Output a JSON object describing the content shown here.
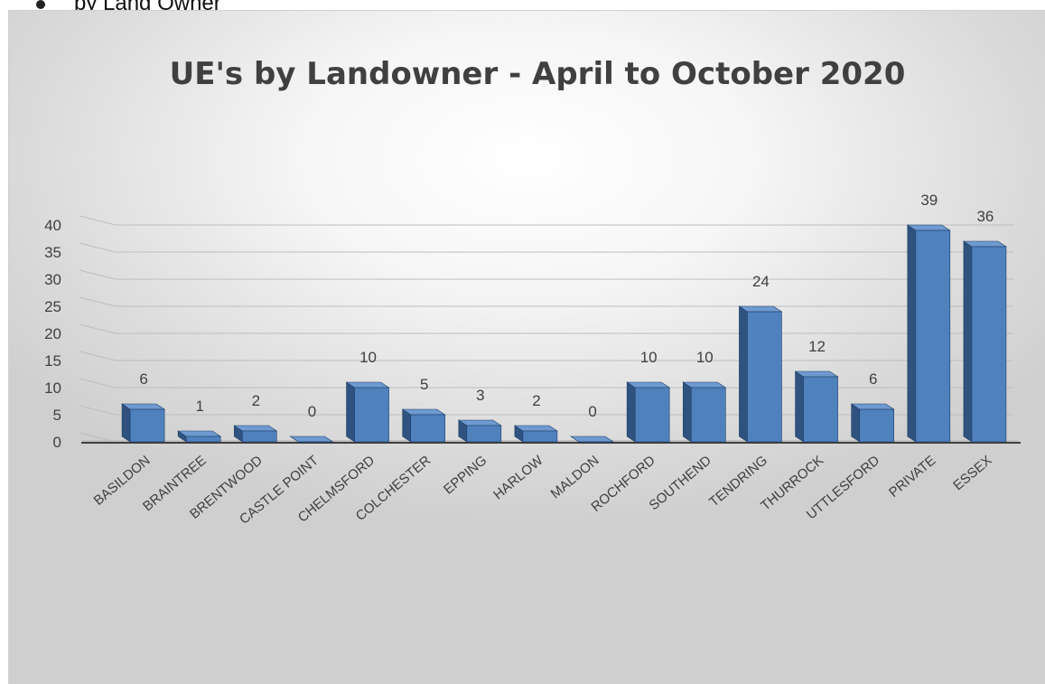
{
  "caption": "by Land Owner",
  "chart_data": {
    "type": "bar",
    "title": "UE's by Landowner - April to October 2020",
    "xlabel": "",
    "ylabel": "",
    "ylim": [
      0,
      40
    ],
    "yticks": [
      0,
      5,
      10,
      15,
      20,
      25,
      30,
      35,
      40
    ],
    "grid": true,
    "categories": [
      "BASILDON",
      "BRAINTREE",
      "BRENTWOOD",
      "CASTLE POINT",
      "CHELMSFORD",
      "COLCHESTER",
      "EPPING",
      "HARLOW",
      "MALDON",
      "ROCHFORD",
      "SOUTHEND",
      "TENDRING",
      "THURROCK",
      "UTTLESFORD",
      "PRIVATE",
      "ESSEX"
    ],
    "values": [
      6,
      1,
      2,
      0,
      10,
      5,
      3,
      2,
      0,
      10,
      10,
      24,
      12,
      6,
      39,
      36
    ],
    "colors": {
      "bar_front": "#4f81bd",
      "bar_side": "#2f527f",
      "bar_top": "#6f9ad0",
      "bar_edge": "#1f3e66",
      "grid": "#bdbdbd",
      "axis": "#404040"
    }
  }
}
